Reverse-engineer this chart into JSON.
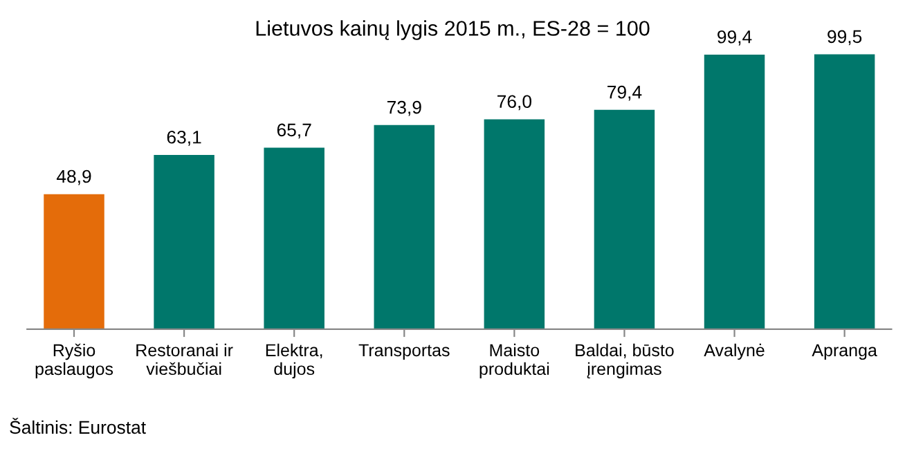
{
  "chart_data": {
    "type": "bar",
    "title": "Lietuvos kainų lygis 2015 m., ES-28 = 100",
    "categories": [
      "Ryšio\npaslaugos",
      "Restoranai ir\nviešbučiai",
      "Elektra,\ndujos",
      "Transportas",
      "Maisto\nproduktai",
      "Baldai, būsto\nįrengimas",
      "Avalynė",
      "Apranga"
    ],
    "values": [
      48.9,
      63.1,
      65.7,
      73.9,
      76.0,
      79.4,
      99.4,
      99.5
    ],
    "value_labels": [
      "48,9",
      "63,1",
      "65,7",
      "73,9",
      "76,0",
      "79,4",
      "99,4",
      "99,5"
    ],
    "colors": [
      "#e46c0a",
      "#00776b",
      "#00776b",
      "#00776b",
      "#00776b",
      "#00776b",
      "#00776b",
      "#00776b"
    ],
    "annotations": [
      "Šaltinis: Eurostat"
    ],
    "grid": false,
    "legend": false
  }
}
